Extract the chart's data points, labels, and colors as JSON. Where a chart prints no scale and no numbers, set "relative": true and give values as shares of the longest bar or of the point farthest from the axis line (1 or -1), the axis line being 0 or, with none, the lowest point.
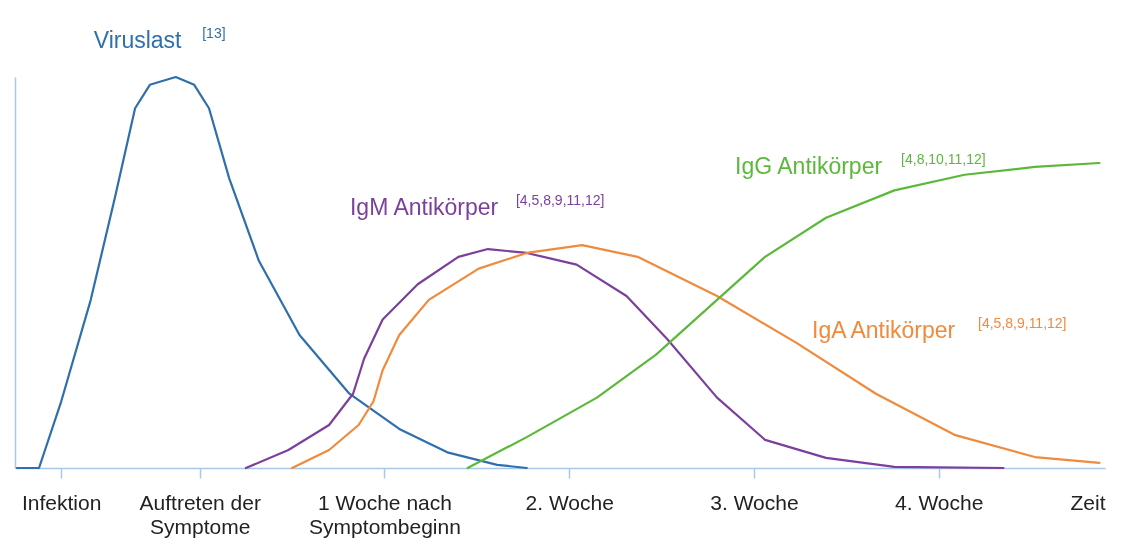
{
  "chart_data": {
    "type": "line",
    "relative": true,
    "grid": false,
    "legend": false,
    "marker": "none",
    "line_style": "solid",
    "xlabel": "Zeit",
    "xlim": [
      -1,
      4.9
    ],
    "xticks": [
      {
        "value": -0.75,
        "label": "Infektion"
      },
      {
        "value": 0,
        "label": "Auftreten der\nSymptome"
      },
      {
        "value": 1,
        "label": "1 Woche nach\nSymptombeginn"
      },
      {
        "value": 2,
        "label": "2. Woche"
      },
      {
        "value": 3,
        "label": "3. Woche"
      },
      {
        "value": 4,
        "label": "4. Woche"
      }
    ],
    "series": [
      {
        "name": "Viruslast $^{[13]}$",
        "color": "#2e6fac",
        "x": [
          -0.99,
          -0.87,
          -0.75,
          -0.59,
          -0.46,
          -0.35,
          -0.27,
          -0.13,
          -0.03,
          0.05,
          0.16,
          0.32,
          0.54,
          0.81,
          1.08,
          1.34,
          1.61,
          1.77
        ],
        "values": [
          0,
          0,
          0.17,
          0.43,
          0.69,
          0.92,
          0.98,
          1,
          0.98,
          0.92,
          0.74,
          0.53,
          0.34,
          0.19,
          0.1,
          0.04,
          0.008,
          0
        ]
      },
      {
        "name": "IgM Antikörper $^{[4,5,8,9,11,12]}$",
        "color": "#7b3f9c",
        "x": [
          0.25,
          0.48,
          0.7,
          0.83,
          0.89,
          0.99,
          1.18,
          1.4,
          1.56,
          1.77,
          2.04,
          2.31,
          2.53,
          2.8,
          3.06,
          3.39,
          3.76,
          4.35
        ],
        "values": [
          0,
          0.046,
          0.11,
          0.19,
          0.28,
          0.38,
          0.47,
          0.54,
          0.56,
          0.55,
          0.52,
          0.44,
          0.33,
          0.18,
          0.072,
          0.026,
          0.003,
          0
        ]
      },
      {
        "name": "IgA Antikörper $^{[4,5,8,9,11,12]}$",
        "color": "#f08a3c",
        "x": [
          0.5,
          0.7,
          0.86,
          0.94,
          0.99,
          1.08,
          1.24,
          1.51,
          1.77,
          2.07,
          2.37,
          2.8,
          3.23,
          3.66,
          4.09,
          4.52,
          4.87
        ],
        "values": [
          0,
          0.046,
          0.11,
          0.17,
          0.25,
          0.34,
          0.43,
          0.51,
          0.55,
          0.57,
          0.54,
          0.44,
          0.32,
          0.19,
          0.084,
          0.028,
          0.013
        ]
      },
      {
        "name": "IgG Antikörper $^{[4,8,10,11,12]}$",
        "color": "#5cb83a",
        "x": [
          1.45,
          1.77,
          2.15,
          2.47,
          2.8,
          3.06,
          3.39,
          3.76,
          4.14,
          4.52,
          4.87
        ],
        "values": [
          0,
          0.079,
          0.18,
          0.29,
          0.43,
          0.54,
          0.64,
          0.71,
          0.75,
          0.77,
          0.78
        ]
      }
    ]
  }
}
